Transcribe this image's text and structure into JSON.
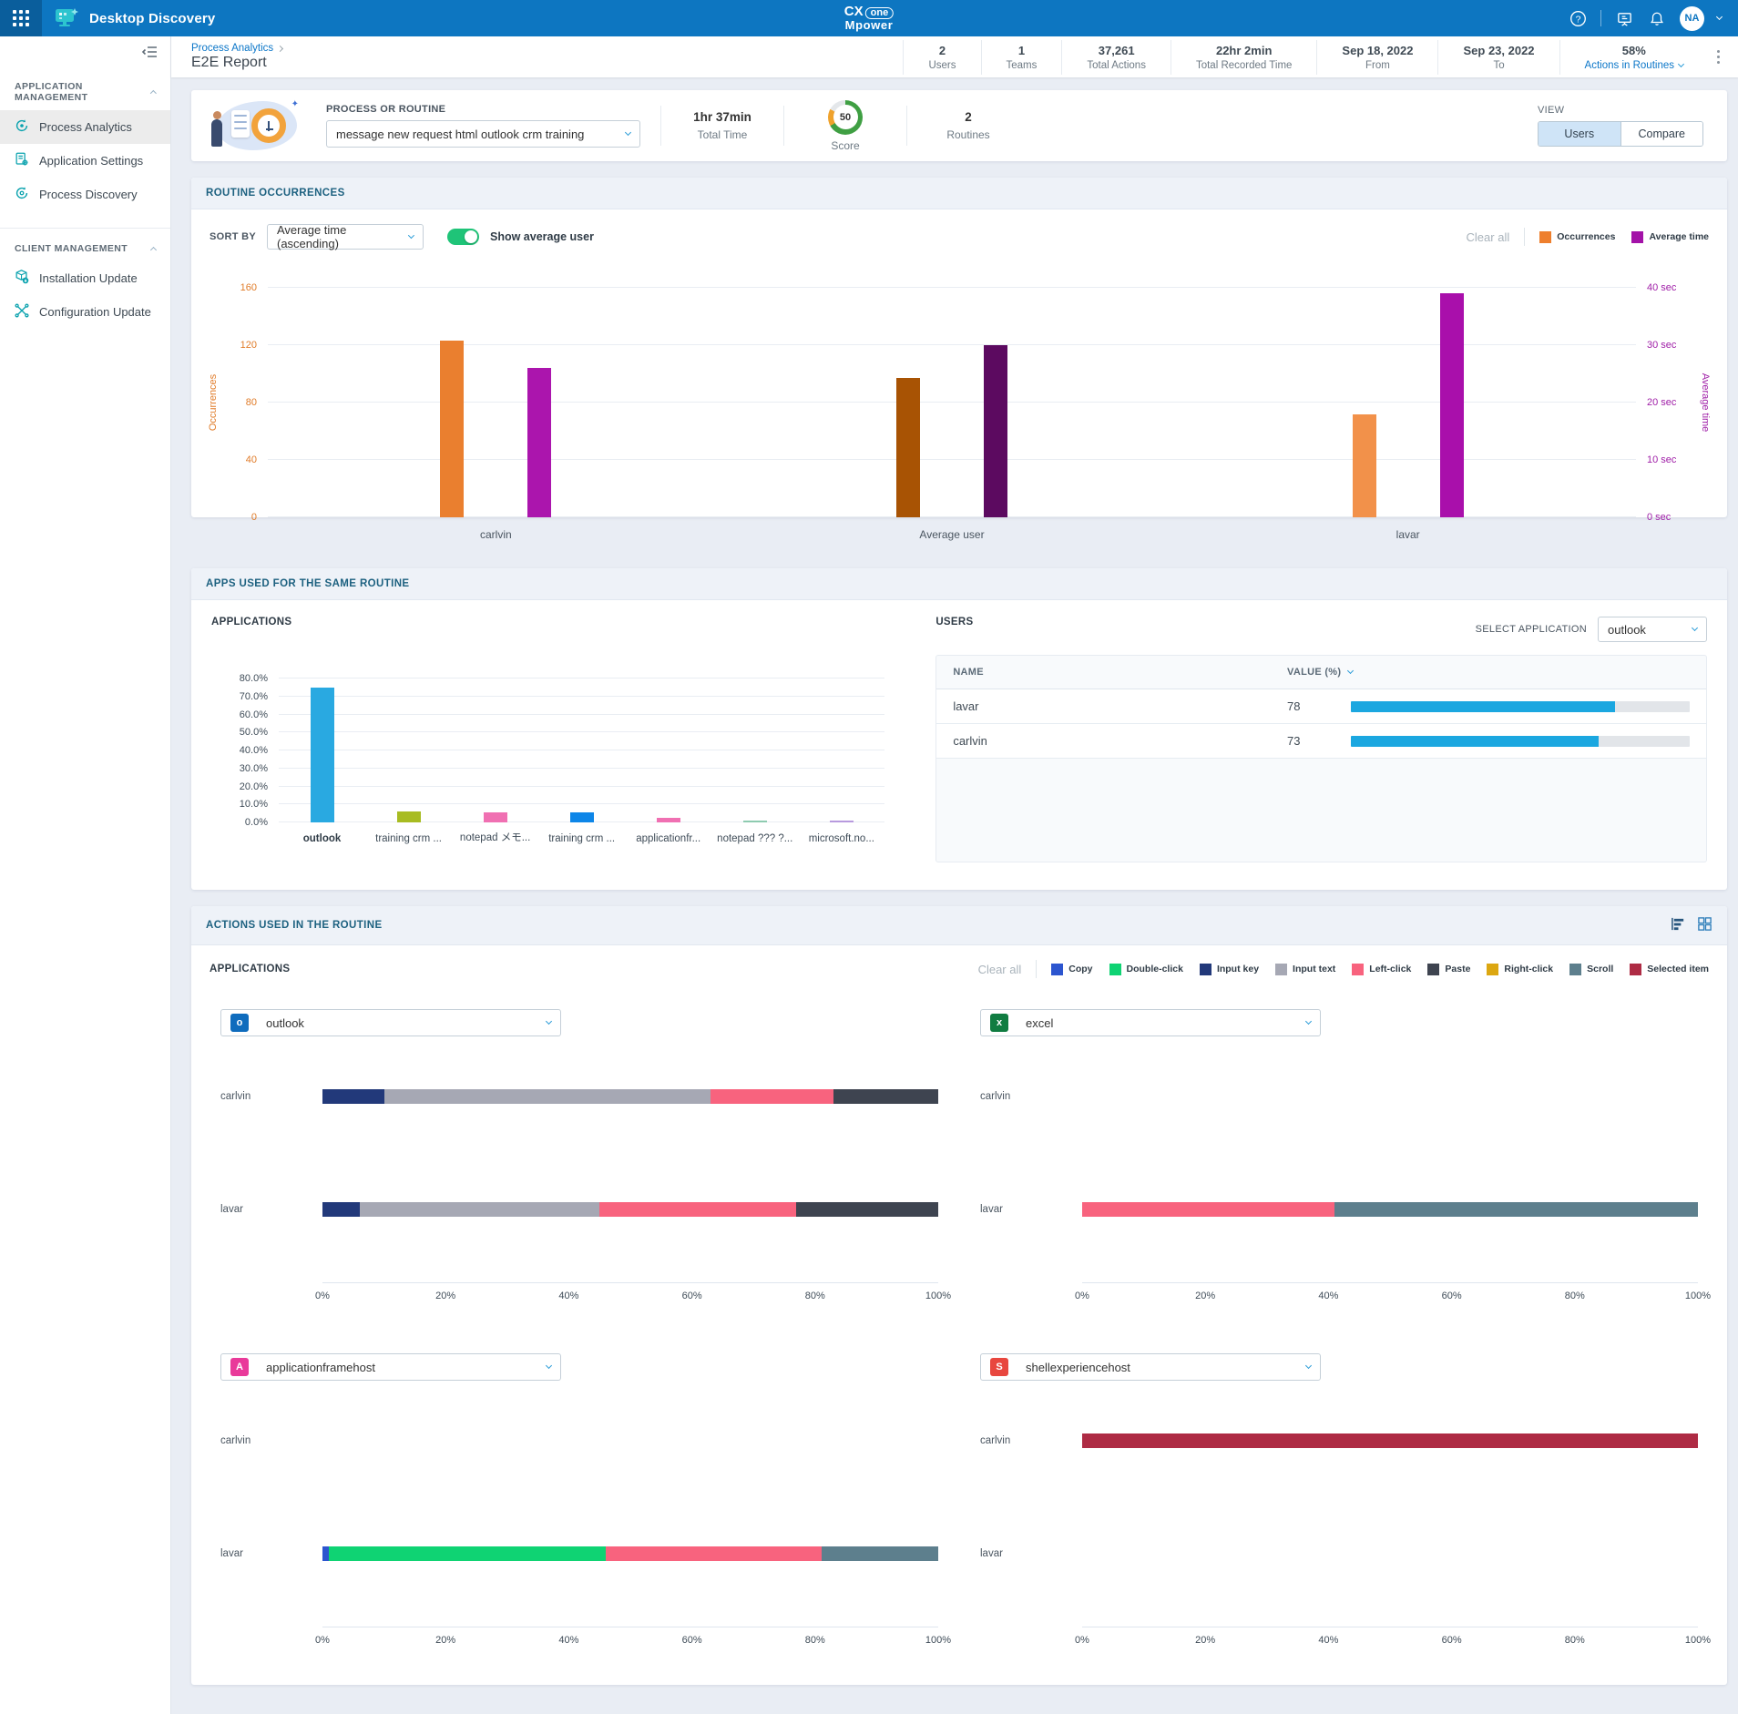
{
  "header": {
    "app_title": "Desktop Discovery",
    "brand": {
      "prefix": "CX",
      "pill": "one",
      "line2": "Mpower"
    },
    "avatar_initials": "NA"
  },
  "pagebar": {
    "breadcrumb": {
      "parent": "Process Analytics",
      "page": "E2E Report"
    },
    "stats": [
      {
        "value": "2",
        "label": "Users",
        "link": false
      },
      {
        "value": "1",
        "label": "Teams",
        "link": false
      },
      {
        "value": "37,261",
        "label": "Total Actions",
        "link": false
      },
      {
        "value": "22hr 2min",
        "label": "Total Recorded Time",
        "link": false
      },
      {
        "value": "Sep 18, 2022",
        "label": "From",
        "link": false
      },
      {
        "value": "Sep 23, 2022",
        "label": "To",
        "link": false
      },
      {
        "value": "58%",
        "label": "Actions in Routines",
        "link": true
      }
    ]
  },
  "sidebar": {
    "sections": [
      {
        "title": "APPLICATION MANAGEMENT",
        "items": [
          {
            "label": "Process Analytics",
            "selected": true
          },
          {
            "label": "Application Settings",
            "selected": false
          },
          {
            "label": "Process Discovery",
            "selected": false
          }
        ]
      },
      {
        "title": "CLIENT MANAGEMENT",
        "items": [
          {
            "label": "Installation Update",
            "selected": false
          },
          {
            "label": "Configuration Update",
            "selected": false
          }
        ]
      }
    ]
  },
  "process_card": {
    "label": "PROCESS OR ROUTINE",
    "selected_routine": "message new request html outlook crm training",
    "total_time": {
      "value": "1hr 37min",
      "label": "Total Time"
    },
    "score": {
      "value": "50",
      "label": "Score"
    },
    "routines": {
      "value": "2",
      "label": "Routines"
    },
    "view": {
      "label": "VIEW",
      "options": [
        "Users",
        "Compare"
      ],
      "selected": "Users"
    }
  },
  "routine_occurrences": {
    "title": "ROUTINE OCCURRENCES",
    "sort_by_label": "SORT BY",
    "sort_by_value": "Average time (ascending)",
    "toggle_label": "Show average user",
    "toggle_on": true,
    "clear_all": "Clear all",
    "legend": [
      {
        "label": "Occurrences",
        "color": "#ee7f2d"
      },
      {
        "label": "Average time",
        "color": "#a312a8"
      }
    ]
  },
  "apps_used": {
    "title": "APPS USED FOR THE SAME ROUTINE",
    "applications_label": "APPLICATIONS",
    "users_label": "USERS",
    "select_application_label": "SELECT APPLICATION",
    "select_application_value": "outlook",
    "columns": {
      "name": "NAME",
      "value": "VALUE (%)"
    }
  },
  "actions_used": {
    "title": "ACTIONS USED IN THE ROUTINE",
    "applications_label": "APPLICATIONS",
    "clear_all": "Clear all",
    "legend": [
      {
        "label": "Copy",
        "color": "#2c55cf"
      },
      {
        "label": "Double-click",
        "color": "#0fd373"
      },
      {
        "label": "Input key",
        "color": "#22397a"
      },
      {
        "label": "Input text",
        "color": "#a6a8b4"
      },
      {
        "label": "Left-click",
        "color": "#f8637e"
      },
      {
        "label": "Paste",
        "color": "#3e4450"
      },
      {
        "label": "Right-click",
        "color": "#dca711"
      },
      {
        "label": "Scroll",
        "color": "#5d7f8d"
      },
      {
        "label": "Selected item",
        "color": "#ae2b44"
      }
    ]
  },
  "chart_data": [
    {
      "id": "routine_occurrences",
      "type": "bar",
      "categories": [
        "carlvin",
        "Average user",
        "lavar"
      ],
      "series": [
        {
          "name": "Occurrences",
          "axis": "left",
          "values": [
            123,
            97,
            72
          ],
          "bar_colors": [
            "#ea7f2f",
            "#a85304",
            "#f2914a"
          ]
        },
        {
          "name": "Average time",
          "axis": "right",
          "unit": "sec",
          "values": [
            26,
            30,
            39
          ],
          "bar_colors": [
            "#ab15ad",
            "#5c0a60",
            "#a90fab"
          ]
        }
      ],
      "y_left": {
        "label": "Occurrences",
        "ticks": [
          "0",
          "40",
          "80",
          "120",
          "160"
        ],
        "max": 160
      },
      "y_right": {
        "label": "Average time",
        "ticks": [
          "0 sec",
          "10 sec",
          "20 sec",
          "30 sec",
          "40 sec"
        ],
        "max": 40
      },
      "grid": true,
      "legend_position": "top-right"
    },
    {
      "id": "applications_usage_share",
      "type": "bar",
      "title": "APPLICATIONS",
      "categories": [
        "outlook",
        "training crm ...",
        "notepad メモ...",
        "training crm ...",
        "applicationfr...",
        "notepad ??? ?...",
        "microsoft.no..."
      ],
      "values": [
        75,
        6,
        5.5,
        5.5,
        2.5,
        1,
        1
      ],
      "bar_colors": [
        "#29a9e1",
        "#a8bc22",
        "#f070b2",
        "#0d86e8",
        "#f070b2",
        "#8ecbb0",
        "#b79ade"
      ],
      "y_ticks": [
        "0.0%",
        "10.0%",
        "20.0%",
        "30.0%",
        "40.0%",
        "50.0%",
        "60.0%",
        "70.0%",
        "80.0%"
      ],
      "ylim": [
        0,
        80
      ],
      "xlabel": "",
      "ylabel": ""
    },
    {
      "id": "users_app_value",
      "type": "table",
      "columns": [
        "NAME",
        "VALUE (%)"
      ],
      "rows": [
        {
          "name": "lavar",
          "value": 78
        },
        {
          "name": "carlvin",
          "value": 73
        }
      ],
      "bar_color": "#1ba7e0",
      "bar_max": 100
    },
    {
      "id": "actions_by_app",
      "type": "stacked-bar-horizontal",
      "x_ticks": [
        "0%",
        "20%",
        "40%",
        "60%",
        "80%",
        "100%"
      ],
      "apps": [
        {
          "app": "outlook",
          "icon_letter": "o",
          "icon_color": "#0f6cbd",
          "rows": [
            {
              "user": "carlvin",
              "segments": [
                {
                  "action": "Input key",
                  "value": 10
                },
                {
                  "action": "Input text",
                  "value": 53
                },
                {
                  "action": "Left-click",
                  "value": 20
                },
                {
                  "action": "Paste",
                  "value": 17
                }
              ]
            },
            {
              "user": "lavar",
              "segments": [
                {
                  "action": "Input key",
                  "value": 6
                },
                {
                  "action": "Input text",
                  "value": 39
                },
                {
                  "action": "Left-click",
                  "value": 32
                },
                {
                  "action": "Paste",
                  "value": 23
                }
              ]
            }
          ]
        },
        {
          "app": "excel",
          "icon_letter": "x",
          "icon_color": "#107c41",
          "rows": [
            {
              "user": "carlvin",
              "segments": []
            },
            {
              "user": "lavar",
              "segments": [
                {
                  "action": "Left-click",
                  "value": 41
                },
                {
                  "action": "Scroll",
                  "value": 59
                }
              ]
            }
          ]
        },
        {
          "app": "applicationframehost",
          "icon_letter": "A",
          "icon_color": "#e93a9a",
          "rows": [
            {
              "user": "carlvin",
              "segments": []
            },
            {
              "user": "lavar",
              "segments": [
                {
                  "action": "Copy",
                  "value": 1
                },
                {
                  "action": "Double-click",
                  "value": 45
                },
                {
                  "action": "Left-click",
                  "value": 35
                },
                {
                  "action": "Scroll",
                  "value": 19
                }
              ]
            }
          ]
        },
        {
          "app": "shellexperiencehost",
          "icon_letter": "S",
          "icon_color": "#e8473f",
          "rows": [
            {
              "user": "carlvin",
              "segments": [
                {
                  "action": "Selected item",
                  "value": 100
                }
              ]
            },
            {
              "user": "lavar",
              "segments": []
            }
          ]
        }
      ]
    }
  ]
}
